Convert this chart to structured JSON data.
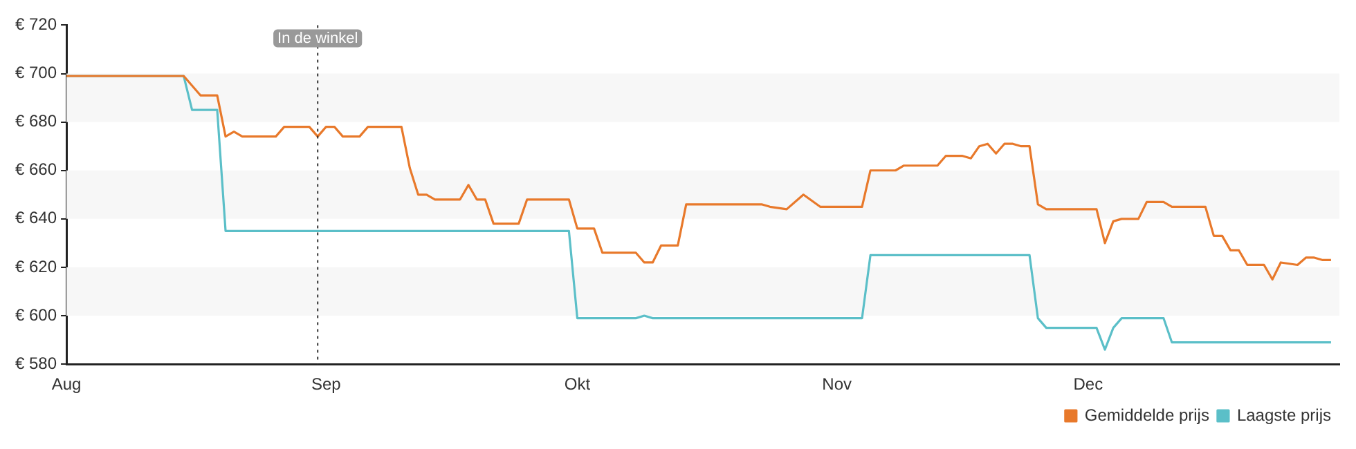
{
  "chart_data": {
    "type": "line",
    "xlim": [
      "--08-01",
      "--12-31"
    ],
    "xticks": [
      {
        "value": "--08-01",
        "label": "Aug"
      },
      {
        "value": "--09-01",
        "label": "Sep"
      },
      {
        "value": "--10-01",
        "label": "Okt"
      },
      {
        "value": "--11-01",
        "label": "Nov"
      },
      {
        "value": "--12-01",
        "label": "Dec"
      }
    ],
    "ylim": [
      580,
      720
    ],
    "yticks": [
      {
        "value": 580,
        "label": "€ 580"
      },
      {
        "value": 600,
        "label": "€ 600"
      },
      {
        "value": 620,
        "label": "€ 620"
      },
      {
        "value": 640,
        "label": "€ 640"
      },
      {
        "value": 660,
        "label": "€ 660"
      },
      {
        "value": 680,
        "label": "€ 680"
      },
      {
        "value": 700,
        "label": "€ 700"
      },
      {
        "value": 720,
        "label": "€ 720"
      }
    ],
    "legend": "bottom right",
    "marker": "none",
    "line_style": "solid",
    "ref_lines": [
      {
        "axis": "x",
        "value": "--08-31",
        "label": "In de winkel",
        "color": "#333333",
        "line_style": "dotted"
      }
    ],
    "series": [
      {
        "name": "Gemiddelde prijs",
        "color": "#e8792b",
        "x": [
          "--08-01",
          "--08-15",
          "--08-17",
          "--08-19",
          "--08-20",
          "--08-21",
          "--08-22",
          "--08-26",
          "--08-27",
          "--08-30",
          "--08-31",
          "--09-01",
          "--09-02",
          "--09-03",
          "--09-05",
          "--09-06",
          "--09-10",
          "--09-11",
          "--09-12",
          "--09-13",
          "--09-14",
          "--09-17",
          "--09-18",
          "--09-19",
          "--09-20",
          "--09-21",
          "--09-24",
          "--09-25",
          "--09-30",
          "--10-01",
          "--10-03",
          "--10-04",
          "--10-08",
          "--10-09",
          "--10-10",
          "--10-11",
          "--10-13",
          "--10-14",
          "--10-23",
          "--10-24",
          "--10-26",
          "--10-28",
          "--10-30",
          "--11-04",
          "--11-05",
          "--11-08",
          "--11-09",
          "--11-13",
          "--11-14",
          "--11-16",
          "--11-17",
          "--11-18",
          "--11-19",
          "--11-20",
          "--11-21",
          "--11-22",
          "--11-23",
          "--11-24",
          "--11-25",
          "--11-26",
          "--12-02",
          "--12-03",
          "--12-04",
          "--12-05",
          "--12-07",
          "--12-08",
          "--12-10",
          "--12-11",
          "--12-15",
          "--12-16",
          "--12-17",
          "--12-18",
          "--12-19",
          "--12-20",
          "--12-22",
          "--12-23",
          "--12-24",
          "--12-26",
          "--12-27",
          "--12-28",
          "--12-29",
          "--12-30"
        ],
        "values": [
          699,
          699,
          691,
          691,
          674,
          676,
          674,
          674,
          678,
          678,
          674,
          678,
          678,
          674,
          674,
          678,
          678,
          661,
          650,
          650,
          648,
          648,
          654,
          648,
          648,
          638,
          638,
          648,
          648,
          636,
          636,
          626,
          626,
          622,
          622,
          629,
          629,
          646,
          646,
          645,
          644,
          650,
          645,
          645,
          660,
          660,
          662,
          662,
          666,
          666,
          665,
          670,
          671,
          667,
          671,
          671,
          670,
          670,
          646,
          644,
          644,
          630,
          639,
          640,
          640,
          647,
          647,
          645,
          645,
          633,
          633,
          627,
          627,
          621,
          621,
          615,
          622,
          621,
          624,
          624,
          623,
          623
        ]
      },
      {
        "name": "Laagste prijs",
        "color": "#5bbfc8",
        "x": [
          "--08-01",
          "--08-15",
          "--08-16",
          "--08-19",
          "--08-20",
          "--09-30",
          "--10-01",
          "--10-08",
          "--10-09",
          "--10-10",
          "--11-04",
          "--11-05",
          "--11-24",
          "--11-25",
          "--11-26",
          "--12-02",
          "--12-03",
          "--12-04",
          "--12-05",
          "--12-10",
          "--12-11",
          "--12-30"
        ],
        "values": [
          699,
          699,
          685,
          685,
          635,
          635,
          599,
          599,
          600,
          599,
          599,
          625,
          625,
          599,
          595,
          595,
          586,
          595,
          599,
          599,
          589,
          589
        ]
      }
    ]
  }
}
